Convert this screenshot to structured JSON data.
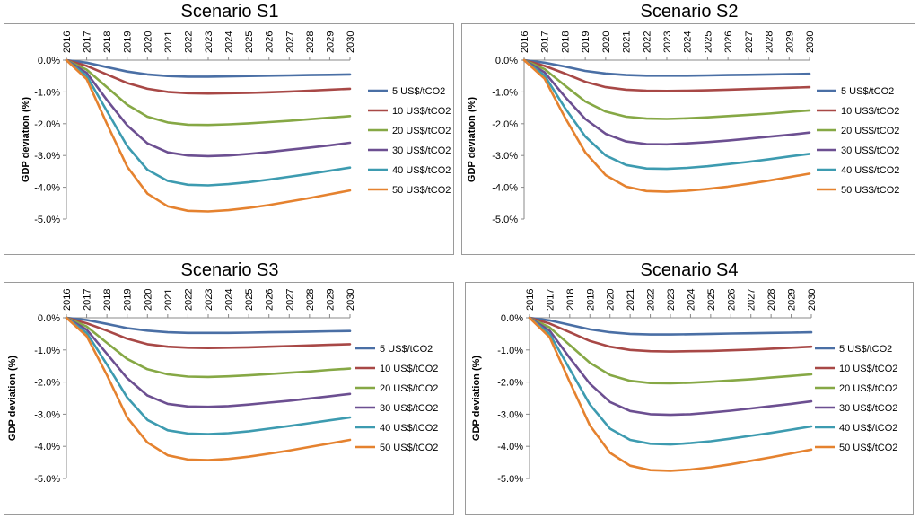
{
  "chart_data": [
    {
      "type": "line",
      "title": "Scenario S1",
      "ylabel": "GDP deviation (%)",
      "x": [
        "2016",
        "2017",
        "2018",
        "2019",
        "2020",
        "2021",
        "2022",
        "2023",
        "2024",
        "2025",
        "2026",
        "2027",
        "2028",
        "2029",
        "2030"
      ],
      "yticks": [
        "0.0%",
        "-1.0%",
        "-2.0%",
        "-3.0%",
        "-4.0%",
        "-5.0%"
      ],
      "ylim": [
        -5.0,
        0.0
      ],
      "legend_position": "right",
      "series": [
        {
          "name": "5 US$/tCO2",
          "color": "#4a6fa5",
          "values": [
            0,
            -0.08,
            -0.22,
            -0.36,
            -0.45,
            -0.5,
            -0.52,
            -0.52,
            -0.51,
            -0.5,
            -0.49,
            -0.48,
            -0.47,
            -0.46,
            -0.45
          ]
        },
        {
          "name": "10 US$/tCO2",
          "color": "#a84846",
          "values": [
            0,
            -0.18,
            -0.45,
            -0.72,
            -0.9,
            -1.0,
            -1.04,
            -1.05,
            -1.04,
            -1.03,
            -1.01,
            -0.99,
            -0.96,
            -0.93,
            -0.9
          ]
        },
        {
          "name": "20 US$/tCO2",
          "color": "#86a845",
          "values": [
            0,
            -0.3,
            -0.85,
            -1.4,
            -1.78,
            -1.96,
            -2.03,
            -2.04,
            -2.02,
            -1.99,
            -1.95,
            -1.91,
            -1.86,
            -1.81,
            -1.76
          ]
        },
        {
          "name": "30 US$/tCO2",
          "color": "#6c4f91",
          "values": [
            0,
            -0.4,
            -1.25,
            -2.05,
            -2.62,
            -2.9,
            -3.0,
            -3.02,
            -3.0,
            -2.95,
            -2.89,
            -2.82,
            -2.75,
            -2.68,
            -2.6
          ]
        },
        {
          "name": "40 US$/tCO2",
          "color": "#3d9bb0",
          "values": [
            0,
            -0.5,
            -1.6,
            -2.7,
            -3.45,
            -3.8,
            -3.92,
            -3.94,
            -3.9,
            -3.84,
            -3.76,
            -3.67,
            -3.58,
            -3.48,
            -3.38
          ]
        },
        {
          "name": "50 US$/tCO2",
          "color": "#e5822f",
          "values": [
            0,
            -0.6,
            -2.0,
            -3.35,
            -4.2,
            -4.6,
            -4.74,
            -4.76,
            -4.72,
            -4.65,
            -4.56,
            -4.45,
            -4.34,
            -4.22,
            -4.1
          ]
        }
      ]
    },
    {
      "type": "line",
      "title": "Scenario S2",
      "ylabel": "GDP deviation (%)",
      "x": [
        "2016",
        "2017",
        "2018",
        "2019",
        "2020",
        "2021",
        "2022",
        "2023",
        "2024",
        "2025",
        "2026",
        "2027",
        "2028",
        "2029",
        "2030"
      ],
      "yticks": [
        "0.0%",
        "-1.0%",
        "-2.0%",
        "-3.0%",
        "-4.0%",
        "-5.0%"
      ],
      "ylim": [
        -5.0,
        0.0
      ],
      "legend_position": "right",
      "series": [
        {
          "name": "5 US$/tCO2",
          "color": "#4a6fa5",
          "values": [
            0,
            -0.08,
            -0.2,
            -0.34,
            -0.42,
            -0.47,
            -0.49,
            -0.49,
            -0.49,
            -0.48,
            -0.47,
            -0.46,
            -0.45,
            -0.44,
            -0.43
          ]
        },
        {
          "name": "10 US$/tCO2",
          "color": "#a84846",
          "values": [
            0,
            -0.18,
            -0.42,
            -0.68,
            -0.85,
            -0.93,
            -0.96,
            -0.97,
            -0.96,
            -0.95,
            -0.93,
            -0.91,
            -0.89,
            -0.87,
            -0.85
          ]
        },
        {
          "name": "20 US$/tCO2",
          "color": "#86a845",
          "values": [
            0,
            -0.28,
            -0.8,
            -1.3,
            -1.62,
            -1.78,
            -1.84,
            -1.85,
            -1.83,
            -1.8,
            -1.76,
            -1.72,
            -1.68,
            -1.63,
            -1.58
          ]
        },
        {
          "name": "30 US$/tCO2",
          "color": "#6c4f91",
          "values": [
            0,
            -0.38,
            -1.15,
            -1.85,
            -2.32,
            -2.56,
            -2.64,
            -2.65,
            -2.62,
            -2.58,
            -2.53,
            -2.47,
            -2.41,
            -2.35,
            -2.28
          ]
        },
        {
          "name": "40 US$/tCO2",
          "color": "#3d9bb0",
          "values": [
            0,
            -0.48,
            -1.5,
            -2.4,
            -3.0,
            -3.3,
            -3.41,
            -3.42,
            -3.39,
            -3.34,
            -3.27,
            -3.2,
            -3.12,
            -3.03,
            -2.95
          ]
        },
        {
          "name": "50 US$/tCO2",
          "color": "#e5822f",
          "values": [
            0,
            -0.58,
            -1.8,
            -2.9,
            -3.62,
            -3.98,
            -4.12,
            -4.14,
            -4.11,
            -4.05,
            -3.98,
            -3.89,
            -3.79,
            -3.68,
            -3.57
          ]
        }
      ]
    },
    {
      "type": "line",
      "title": "Scenario S3",
      "ylabel": "GDP deviation (%)",
      "x": [
        "2016",
        "2017",
        "2018",
        "2019",
        "2020",
        "2021",
        "2022",
        "2023",
        "2024",
        "2025",
        "2026",
        "2027",
        "2028",
        "2029",
        "2030"
      ],
      "yticks": [
        "0.0%",
        "-1.0%",
        "-2.0%",
        "-3.0%",
        "-4.0%",
        "-5.0%"
      ],
      "ylim": [
        -5.0,
        0.0
      ],
      "legend_position": "right",
      "series": [
        {
          "name": "5 US$/tCO2",
          "color": "#4a6fa5",
          "values": [
            0,
            -0.07,
            -0.19,
            -0.32,
            -0.4,
            -0.45,
            -0.47,
            -0.47,
            -0.47,
            -0.46,
            -0.45,
            -0.44,
            -0.43,
            -0.42,
            -0.41
          ]
        },
        {
          "name": "10 US$/tCO2",
          "color": "#a84846",
          "values": [
            0,
            -0.17,
            -0.4,
            -0.65,
            -0.82,
            -0.9,
            -0.93,
            -0.94,
            -0.93,
            -0.92,
            -0.9,
            -0.88,
            -0.86,
            -0.84,
            -0.82
          ]
        },
        {
          "name": "20 US$/tCO2",
          "color": "#86a845",
          "values": [
            0,
            -0.27,
            -0.78,
            -1.28,
            -1.6,
            -1.76,
            -1.83,
            -1.84,
            -1.82,
            -1.79,
            -1.75,
            -1.71,
            -1.67,
            -1.62,
            -1.58
          ]
        },
        {
          "name": "30 US$/tCO2",
          "color": "#6c4f91",
          "values": [
            0,
            -0.37,
            -1.12,
            -1.88,
            -2.42,
            -2.68,
            -2.76,
            -2.77,
            -2.75,
            -2.7,
            -2.64,
            -2.58,
            -2.51,
            -2.44,
            -2.37
          ]
        },
        {
          "name": "40 US$/tCO2",
          "color": "#3d9bb0",
          "values": [
            0,
            -0.47,
            -1.45,
            -2.48,
            -3.18,
            -3.5,
            -3.6,
            -3.62,
            -3.59,
            -3.53,
            -3.45,
            -3.37,
            -3.28,
            -3.19,
            -3.1
          ]
        },
        {
          "name": "50 US$/tCO2",
          "color": "#e5822f",
          "values": [
            0,
            -0.57,
            -1.78,
            -3.1,
            -3.88,
            -4.28,
            -4.41,
            -4.43,
            -4.39,
            -4.32,
            -4.23,
            -4.13,
            -4.02,
            -3.91,
            -3.8
          ]
        }
      ]
    },
    {
      "type": "line",
      "title": "Scenario S4",
      "ylabel": "GDP deviation (%)",
      "x": [
        "2016",
        "2017",
        "2018",
        "2019",
        "2020",
        "2021",
        "2022",
        "2023",
        "2024",
        "2025",
        "2026",
        "2027",
        "2028",
        "2029",
        "2030"
      ],
      "yticks": [
        "0.0%",
        "-1.0%",
        "-2.0%",
        "-3.0%",
        "-4.0%",
        "-5.0%"
      ],
      "ylim": [
        -5.0,
        0.0
      ],
      "legend_position": "right",
      "series": [
        {
          "name": "5 US$/tCO2",
          "color": "#4a6fa5",
          "values": [
            0,
            -0.08,
            -0.22,
            -0.36,
            -0.45,
            -0.5,
            -0.52,
            -0.52,
            -0.51,
            -0.5,
            -0.49,
            -0.48,
            -0.47,
            -0.46,
            -0.45
          ]
        },
        {
          "name": "10 US$/tCO2",
          "color": "#a84846",
          "values": [
            0,
            -0.18,
            -0.45,
            -0.72,
            -0.9,
            -1.0,
            -1.04,
            -1.05,
            -1.04,
            -1.03,
            -1.01,
            -0.99,
            -0.96,
            -0.93,
            -0.9
          ]
        },
        {
          "name": "20 US$/tCO2",
          "color": "#86a845",
          "values": [
            0,
            -0.3,
            -0.85,
            -1.4,
            -1.78,
            -1.96,
            -2.03,
            -2.04,
            -2.02,
            -1.99,
            -1.95,
            -1.91,
            -1.86,
            -1.81,
            -1.76
          ]
        },
        {
          "name": "30 US$/tCO2",
          "color": "#6c4f91",
          "values": [
            0,
            -0.4,
            -1.25,
            -2.05,
            -2.62,
            -2.9,
            -3.0,
            -3.02,
            -3.0,
            -2.95,
            -2.89,
            -2.82,
            -2.75,
            -2.68,
            -2.6
          ]
        },
        {
          "name": "40 US$/tCO2",
          "color": "#3d9bb0",
          "values": [
            0,
            -0.5,
            -1.6,
            -2.7,
            -3.45,
            -3.8,
            -3.92,
            -3.94,
            -3.9,
            -3.84,
            -3.76,
            -3.67,
            -3.58,
            -3.48,
            -3.38
          ]
        },
        {
          "name": "50 US$/tCO2",
          "color": "#e5822f",
          "values": [
            0,
            -0.6,
            -2.0,
            -3.35,
            -4.2,
            -4.6,
            -4.74,
            -4.76,
            -4.72,
            -4.65,
            -4.56,
            -4.45,
            -4.34,
            -4.22,
            -4.1
          ]
        }
      ]
    }
  ]
}
